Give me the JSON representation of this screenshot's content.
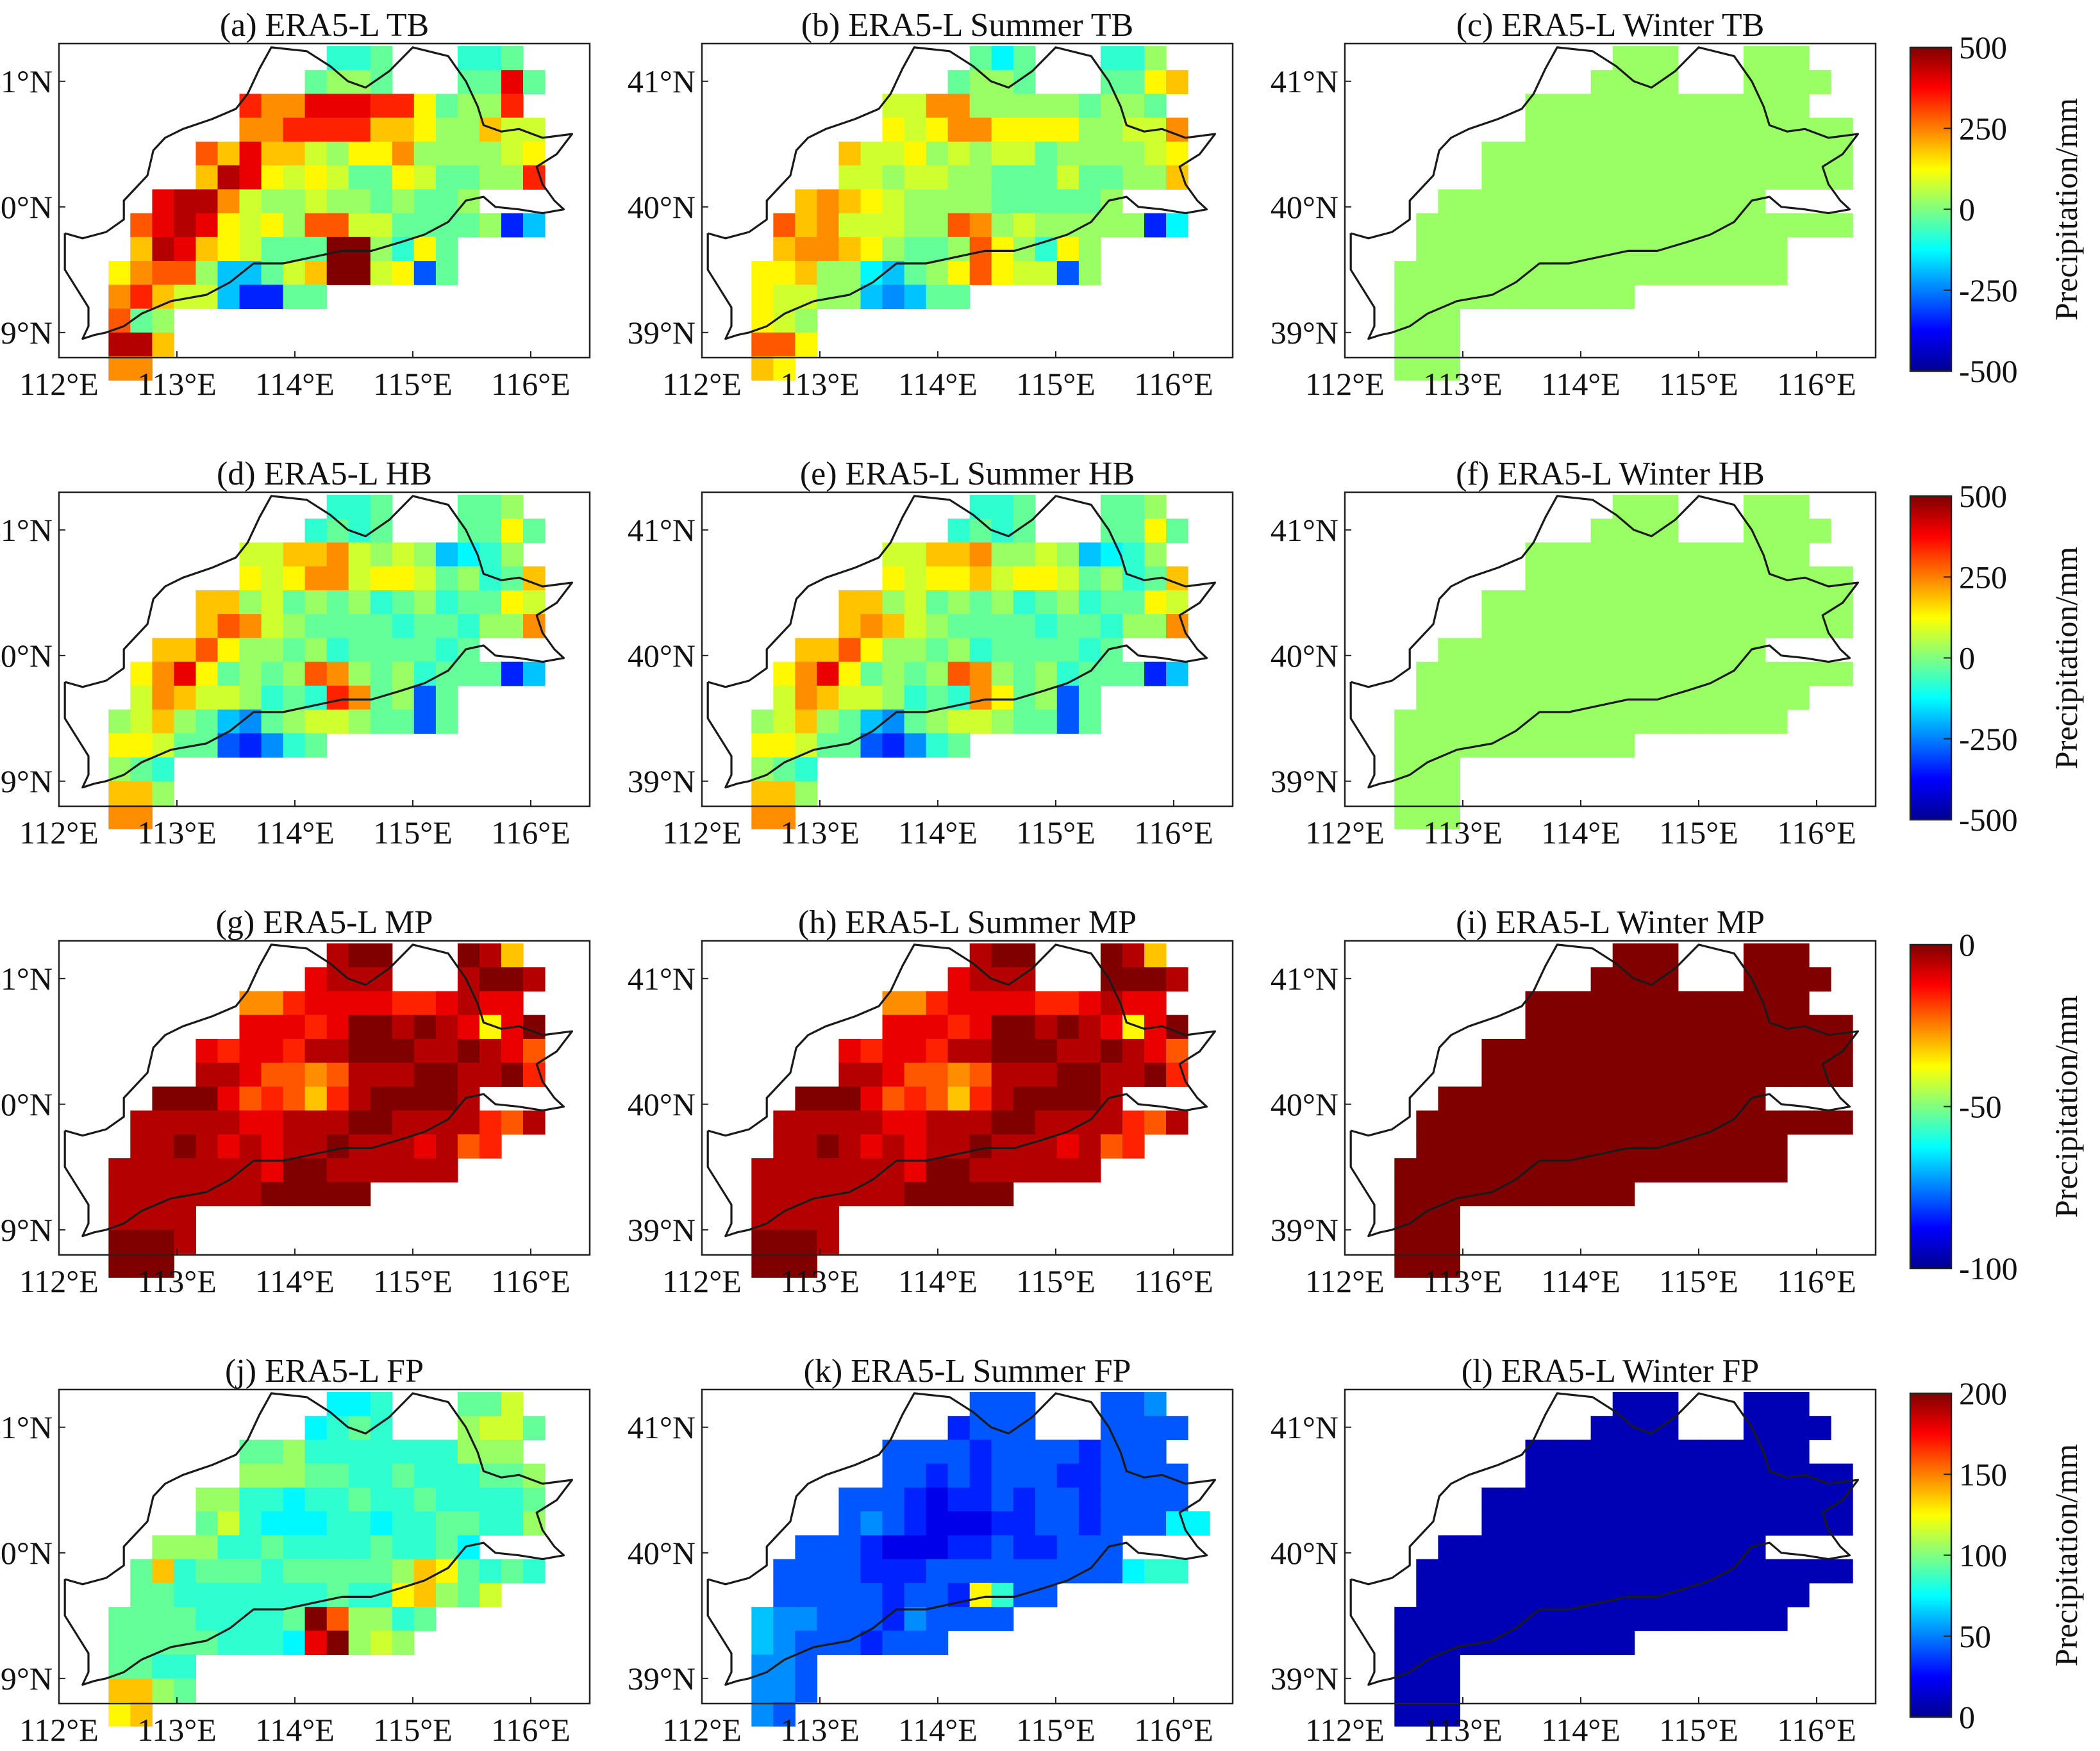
{
  "figure": {
    "lat_ticks": [
      "39°N",
      "40°N",
      "41°N"
    ],
    "lon_ticks": [
      "112°E",
      "113°E",
      "114°E",
      "115°E",
      "116°E"
    ],
    "lon_range": [
      112,
      116.5
    ],
    "lat_range": [
      38.8,
      41.3
    ]
  },
  "colorbars": [
    {
      "label": "Precipitation/mm",
      "range": [
        -500,
        500
      ],
      "ticks": [
        {
          "v": 500,
          "t": "500"
        },
        {
          "v": 250,
          "t": "250"
        },
        {
          "v": 0,
          "t": "0"
        },
        {
          "v": -250,
          "t": "-250"
        },
        {
          "v": -500,
          "t": "-500"
        }
      ]
    },
    {
      "label": "Precipitation/mm",
      "range": [
        -500,
        500
      ],
      "ticks": [
        {
          "v": 500,
          "t": "500"
        },
        {
          "v": 250,
          "t": "250"
        },
        {
          "v": 0,
          "t": "0"
        },
        {
          "v": -250,
          "t": "-250"
        },
        {
          "v": -500,
          "t": "-500"
        }
      ]
    },
    {
      "label": "Precipitation/mm",
      "range": [
        -100,
        0
      ],
      "ticks": [
        {
          "v": 0,
          "t": "0"
        },
        {
          "v": -50,
          "t": "-50"
        },
        {
          "v": -100,
          "t": "-100"
        }
      ]
    },
    {
      "label": "Precipitation/mm",
      "range": [
        0,
        200
      ],
      "ticks": [
        {
          "v": 200,
          "t": "200"
        },
        {
          "v": 150,
          "t": "150"
        },
        {
          "v": 100,
          "t": "100"
        },
        {
          "v": 50,
          "t": "50"
        },
        {
          "v": 0,
          "t": "0"
        }
      ]
    }
  ],
  "chart_data": [
    {
      "type": "heatmap",
      "title": "(a) ERA5-L TB",
      "row": 0,
      "col": 0,
      "grid": [
        "............IIJ...IIJ..",
        "...........JKKJ...JJRJ.",
        "........QOORRRQQMJKKQ..",
        "........OOQQQQNNMKKNLL.",
        "......PNRNNLKMMOKKKKLM.",
        "......NSRMLMLJJMLJJKKQ.",
        "....RSSOLKKLKKJKJJK....",
        "...PRSRMLMKPPLLJJJJKDG.",
        "...NSRNMLJJJUTKIMJ.....",
        "..MOPPKGGJLNWTLMEJ.....",
        "..OQNLLGDDJJ...........",
        "..PJK..................",
        "..SSN..................",
        "..OO..................."
      ]
    },
    {
      "type": "heatmap",
      "title": "(b) ERA5-L Summer TB",
      "row": 0,
      "col": 1,
      "grid": [
        "............JHJ...IIK..",
        "...........JKKJ...JJMN.",
        "........LLOOKKKKKJKKJ..",
        "........MLMOOMMMMKKLLO.",
        "......NLLMKLKLLJKKKKLM.",
        "......LLKLLKKJJJLJJKKN.",
        "....NONMLKKKKJJJJJK....",
        "...PNOLLLKKPOKLKKKKKDH.",
        "...NOONMKJJKPMKIMK.....",
        "..MMNKKHGJKMPMLLEK.....",
        "..MLLKKGFGJJ...........",
        "..MLK..................",
        "..PPM..................",
        "..NM..................."
      ]
    },
    {
      "type": "heatmap",
      "title": "(c) ERA5-L Winter TB",
      "row": 0,
      "col": 2,
      "grid": [
        "............KKK...KKK..",
        "...........KKKK...KKKK.",
        "........KKKKKKKKKKKKK..",
        "........KKKKKKKKKKKKKKK",
        "......KKKKKKKKKKKKKKKKK",
        "......KKKKKKKKKKKKKKKKK",
        "....KKKKKKKKKKKKKKK....",
        "...KKKKKKKKKKKKKKKKKKKK",
        "...KKKKKKKKKKKKKKKKK...",
        "..KKKKKKKKKKKKKKKKKK...",
        "..KKKKKKKKKKK..........",
        "..KKK..................",
        "..KKK..................",
        "..KKK.................."
      ]
    },
    {
      "type": "heatmap",
      "title": "(d) ERA5-L HB",
      "row": 1,
      "col": 0,
      "grid": [
        "............IIJ...JJK..",
        "...........IJIJ...JJMJ.",
        "........LLNNOLKLKGHIK..",
        "........MLMOOLMMLJKIJN.",
        "......NNKLJKJKIJKIJJML.",
        "......NPOLKJJJJIJJIKKO.",
        "....NNPMKKJKIJJJJIJ....",
        "...MORMJKJKPOKJKIJJJDG.",
        "...LONLLKIJIQOJKEJ.....",
        "..KLNKJGFJKLLKJJEJ.....",
        "..MMLJJEDFIJ...........",
        "..KJI..................",
        "..NNK..................",
        "..OO..................."
      ]
    },
    {
      "type": "heatmap",
      "title": "(e) ERA5-L Summer HB",
      "row": 1,
      "col": 1,
      "grid": [
        "............IIJ...JJK..",
        "...........IJIJ...JJMJ.",
        "........LLNNOKKLKGHIK..",
        "........MLMMNLMMLJKIJN.",
        "......NNKLJKJKIJKIJJML.",
        "......NONLKJJJJIJJIKKO.",
        "....NNPMKKJKIJJJJIJ....",
        "...MORMJKJKPOKJKIJJJDG.",
        "...LONLLKIJIOMJKEJ.....",
        "..KLNKJGFJKLLKJJEJ.....",
        "..MMLJJEDFIJ...........",
        "..KJI..................",
        "..NNK..................",
        "..OO..................."
      ]
    },
    {
      "type": "heatmap",
      "title": "(f) ERA5-L Winter HB",
      "row": 1,
      "col": 2,
      "grid": [
        "............KKK...KKK..",
        "...........KKKK...KKKK.",
        "........KKKKKKKKKKKKK..",
        "........KKKKKKKKKKKKKKK",
        "......KKKKKKKKKKKKKKKKK",
        "......KKKKKKKKKKKKKKKKK",
        "....KKKKKKKKKKKKKKK....",
        "...KKKKKKKKKKKKKKKKKKKK",
        "...KKKKKKKKKKKKKKKKKK..",
        "..KKKKKKKKKKKKKKKKKK...",
        "..KKKKKKKKKKK..........",
        "..KKK..................",
        "..KKK..................",
        "..KKK.................."
      ]
    },
    {
      "type": "heatmap",
      "title": "(g) ERA5-L MP",
      "row": 2,
      "col": 0,
      "grid": [
        "............STT...TSN..",
        "...........RSSS...STTS.",
        "........OOQRRRRQQRSRR..",
        "........RRRQRTTSTSRMRT.",
        "......RQRRQSSTTTSSTSRP.",
        "......SSRPPOPSSSTTSSTQ.",
        "....TTTRPQPNQSTTTTS....",
        "...SSSSSRRSSSTTSSSSQPS.",
        "...SSTSRSRSSTSSSRSPQ...",
        "..SSSSSSSRTTSSSSSS.....",
        "..SSSSSSSTTTTT.........",
        "..SSSS.................",
        "..TTTS.................",
        "..TTT.................."
      ]
    },
    {
      "type": "heatmap",
      "title": "(h) ERA5-L Summer MP",
      "row": 2,
      "col": 1,
      "grid": [
        "............STT...TSN..",
        "...........RSSS...TTTS.",
        "........OOQRRRRQQRSRR..",
        "........RRRQRTTSTSRMRT.",
        "......RQRRQSSTTTSSTSRP.",
        "......SSRPPOPSSSTTSSTQ.",
        "....TTTRPQPNQSTTTTS....",
        "...SSSSSRRSSSTTSSSSQPS.",
        "...SSTSRSRSSTSSSRSPQ...",
        "..SSSSSSSRTTSSSSSS.....",
        "..SSSSSSSTTTTT.........",
        "..SSSS.................",
        "..TTTS.................",
        "..TTT.................."
      ]
    },
    {
      "type": "heatmap",
      "title": "(i) ERA5-L Winter MP",
      "row": 2,
      "col": 2,
      "grid": [
        "............TTT...TTT..",
        "...........TTTT...TTTT.",
        "........TTTTTTTTTTTTT..",
        "........TTTTTTTTTTTTTTT",
        "......TTTTTTTTTTTTTTTTT",
        "......TTTTTTTTTTTTTTTTT",
        "....TTTTTTTTTTTTTTT....",
        "...TTTTTTTTTTTTTTTTTTTT",
        "...TTTTTTTTTTTTTTTTT...",
        "..TTTTTTTTTTTTTTTTTT...",
        "..TTTTTTTTTTT..........",
        "..TTT..................",
        "..TTT..................",
        "..TTT.................."
      ]
    },
    {
      "type": "heatmap",
      "title": "(j) ERA5-L FP",
      "row": 3,
      "col": 0,
      "grid": [
        "............HHI...JJL..",
        "...........HIJI...KLLJ.",
        "........JJKIIIIIIIKKK..",
        "........KKKJJIIJIIIJJK.",
        "......KKIIHIIJIIJIIIIJ.",
        "......JLIHHHIIHIIJJIIK.",
        "....KKKIIJIIIIJIIJH....",
        "...JNIJJJIJJJJJKNMJIJI.",
        "...JJIIIIIIIJIIMNKJL...",
        "..JJJJIIIIJTPKKIJ.....",
        "..JJJJJIIIHRTKLK.......",
        "..JJII.................",
        "..NNKJ.................",
        "..MN..................."
      ]
    },
    {
      "type": "heatmap",
      "title": "(k) ERA5-L Summer FP",
      "row": 3,
      "col": 1,
      "grid": [
        "............EEE...EEF..",
        "...........DEEE...EEEE.",
        "........EEEEDEEEEDEEE..",
        "........EEDEDEEEDDEEEE.",
        "......EEEDCDDEDEEDEEEE.",
        "......EFEDCCCDDEEDEEEHH",
        "....EEEDCCCDDEDDEEE....",
        "...EEEEDDDEEEEEEEEEHII.",
        "...EEEEEDEEDMIEE.......",
        "..GFFEEEDFEEEE.........",
        "..GFEEEDEEE............",
        "..FFE..................",
        "..FFE..................",
        "..FE..................."
      ]
    },
    {
      "type": "heatmap",
      "title": "(l) ERA5-L Winter FP",
      "row": 3,
      "col": 2,
      "grid": [
        "............BBB...BBB..",
        "...........BBBB...BBBB.",
        "........BBBBBBBBBBBBB..",
        "........BBBBBBBBBBBBBBB",
        "......BBBBBBBBBBBBBBBBB",
        "......BBBBBBBBBBBBBBBBB",
        "....BBBBBBBBBBBBBBB....",
        "...BBBBBBBBBBBBBBBBBBBB",
        "...BBBBBBBBBBBBBBBBBB..",
        "..BBBBBBBBBBBBBBBBBB...",
        "..BBBBBBBBBBB..........",
        "..BBB..................",
        "..BBB..................",
        "..BBB.................."
      ]
    }
  ]
}
